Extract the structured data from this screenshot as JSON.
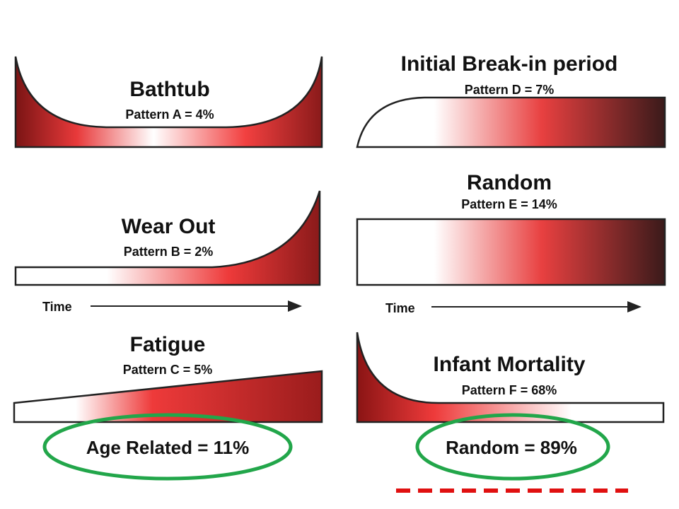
{
  "patterns": [
    {
      "title": "Bathtub",
      "subtitle": "Pattern A = 4%"
    },
    {
      "title": "Wear Out",
      "subtitle": "Pattern B = 2%"
    },
    {
      "title": "Fatigue",
      "subtitle": "Pattern C = 5%"
    },
    {
      "title": "Initial Break-in period",
      "subtitle": "Pattern D = 7%"
    },
    {
      "title": "Random",
      "subtitle": "Pattern E = 14%"
    },
    {
      "title": "Infant Mortality",
      "subtitle": "Pattern F = 68%"
    }
  ],
  "axis_labels": [
    "Time",
    "Time"
  ],
  "groups": [
    "Age Related = 11%",
    "Random = 89%"
  ]
}
